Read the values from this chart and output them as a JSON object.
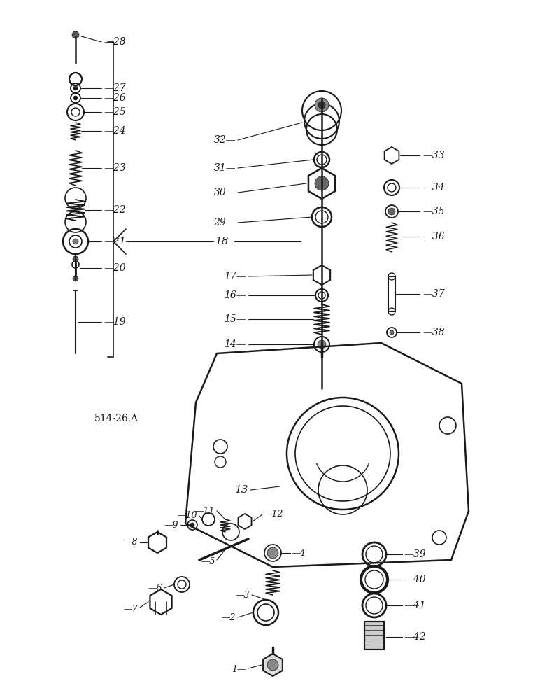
{
  "title": "514-26.A",
  "bg_color": "#ffffff",
  "line_color": "#1a1a1a",
  "figsize": [
    7.72,
    10.0
  ],
  "dpi": 100
}
